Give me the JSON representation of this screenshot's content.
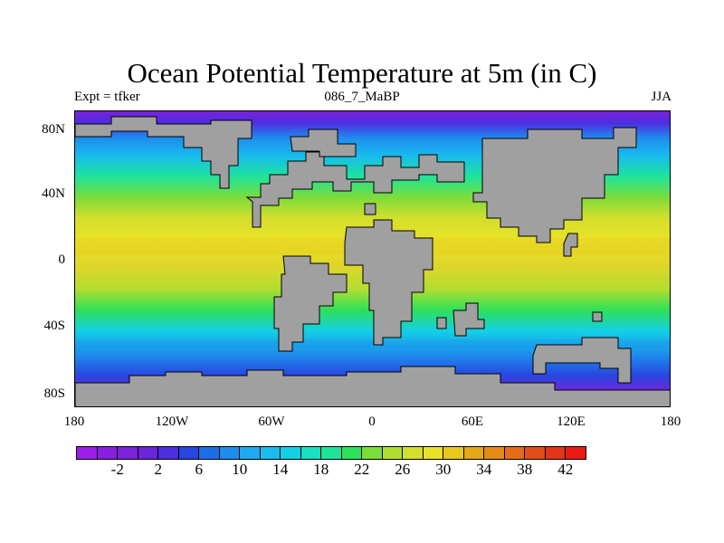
{
  "title": "Ocean Potential Temperature at 5m (in C)",
  "subtitle_left": "Expt = tfker",
  "subtitle_center": "086_7_MaBP",
  "subtitle_right": "JJA",
  "y_ticks": [
    "80N",
    "40N",
    "0",
    "40S",
    "80S"
  ],
  "x_ticks": [
    "180",
    "120W",
    "60W",
    "0",
    "60E",
    "120E",
    "180"
  ],
  "colorbar": {
    "colors": [
      "#9b1fe8",
      "#8a1ee0",
      "#7a22dc",
      "#6a26d8",
      "#4c2ee0",
      "#2846e0",
      "#1c6ee6",
      "#1e8cee",
      "#20a8f0",
      "#18bcee",
      "#12d0e6",
      "#18e0c0",
      "#1ee49a",
      "#2ee05a",
      "#7cdc3a",
      "#b0de30",
      "#d4de2c",
      "#e8e228",
      "#e8c81e",
      "#e4a818",
      "#e68a18",
      "#e46c18",
      "#e24e18",
      "#e23416",
      "#e81a14"
    ],
    "labels": [
      "-2",
      "2",
      "6",
      "10",
      "14",
      "18",
      "22",
      "26",
      "30",
      "34",
      "38",
      "42"
    ]
  },
  "colors": {
    "land": "#a0a0a0",
    "coast": "#000000"
  }
}
